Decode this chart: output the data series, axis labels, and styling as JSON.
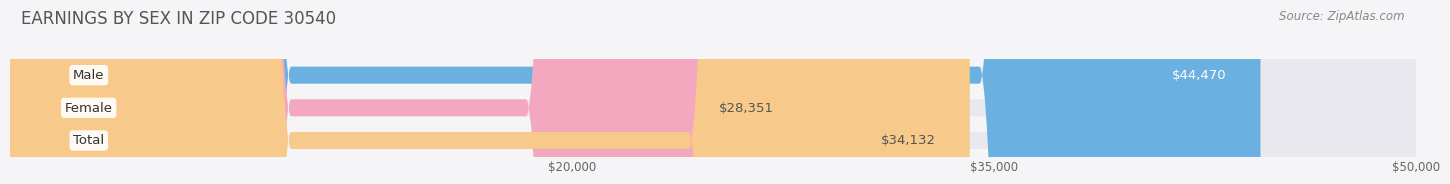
{
  "title": "EARNINGS BY SEX IN ZIP CODE 30540",
  "source": "Source: ZipAtlas.com",
  "categories": [
    "Male",
    "Female",
    "Total"
  ],
  "values": [
    44470,
    28351,
    34132
  ],
  "bar_colors": [
    "#6ab0e0",
    "#f4a8c0",
    "#f7c98a"
  ],
  "bar_track_color": "#e8e8ee",
  "label_colors": [
    "#ffffff",
    "#555555",
    "#555555"
  ],
  "value_labels": [
    "$44,470",
    "$28,351",
    "$34,132"
  ],
  "xmin": 0,
  "xmax": 50000,
  "xticks": [
    20000,
    35000,
    50000
  ],
  "xtick_labels": [
    "$20,000",
    "$35,000",
    "$50,000"
  ],
  "background_color": "#f5f5f8",
  "title_fontsize": 12,
  "label_fontsize": 9.5,
  "source_fontsize": 8.5,
  "bar_height": 0.52,
  "bar_label_fontsize": 9.5,
  "rounding_size": 10000
}
